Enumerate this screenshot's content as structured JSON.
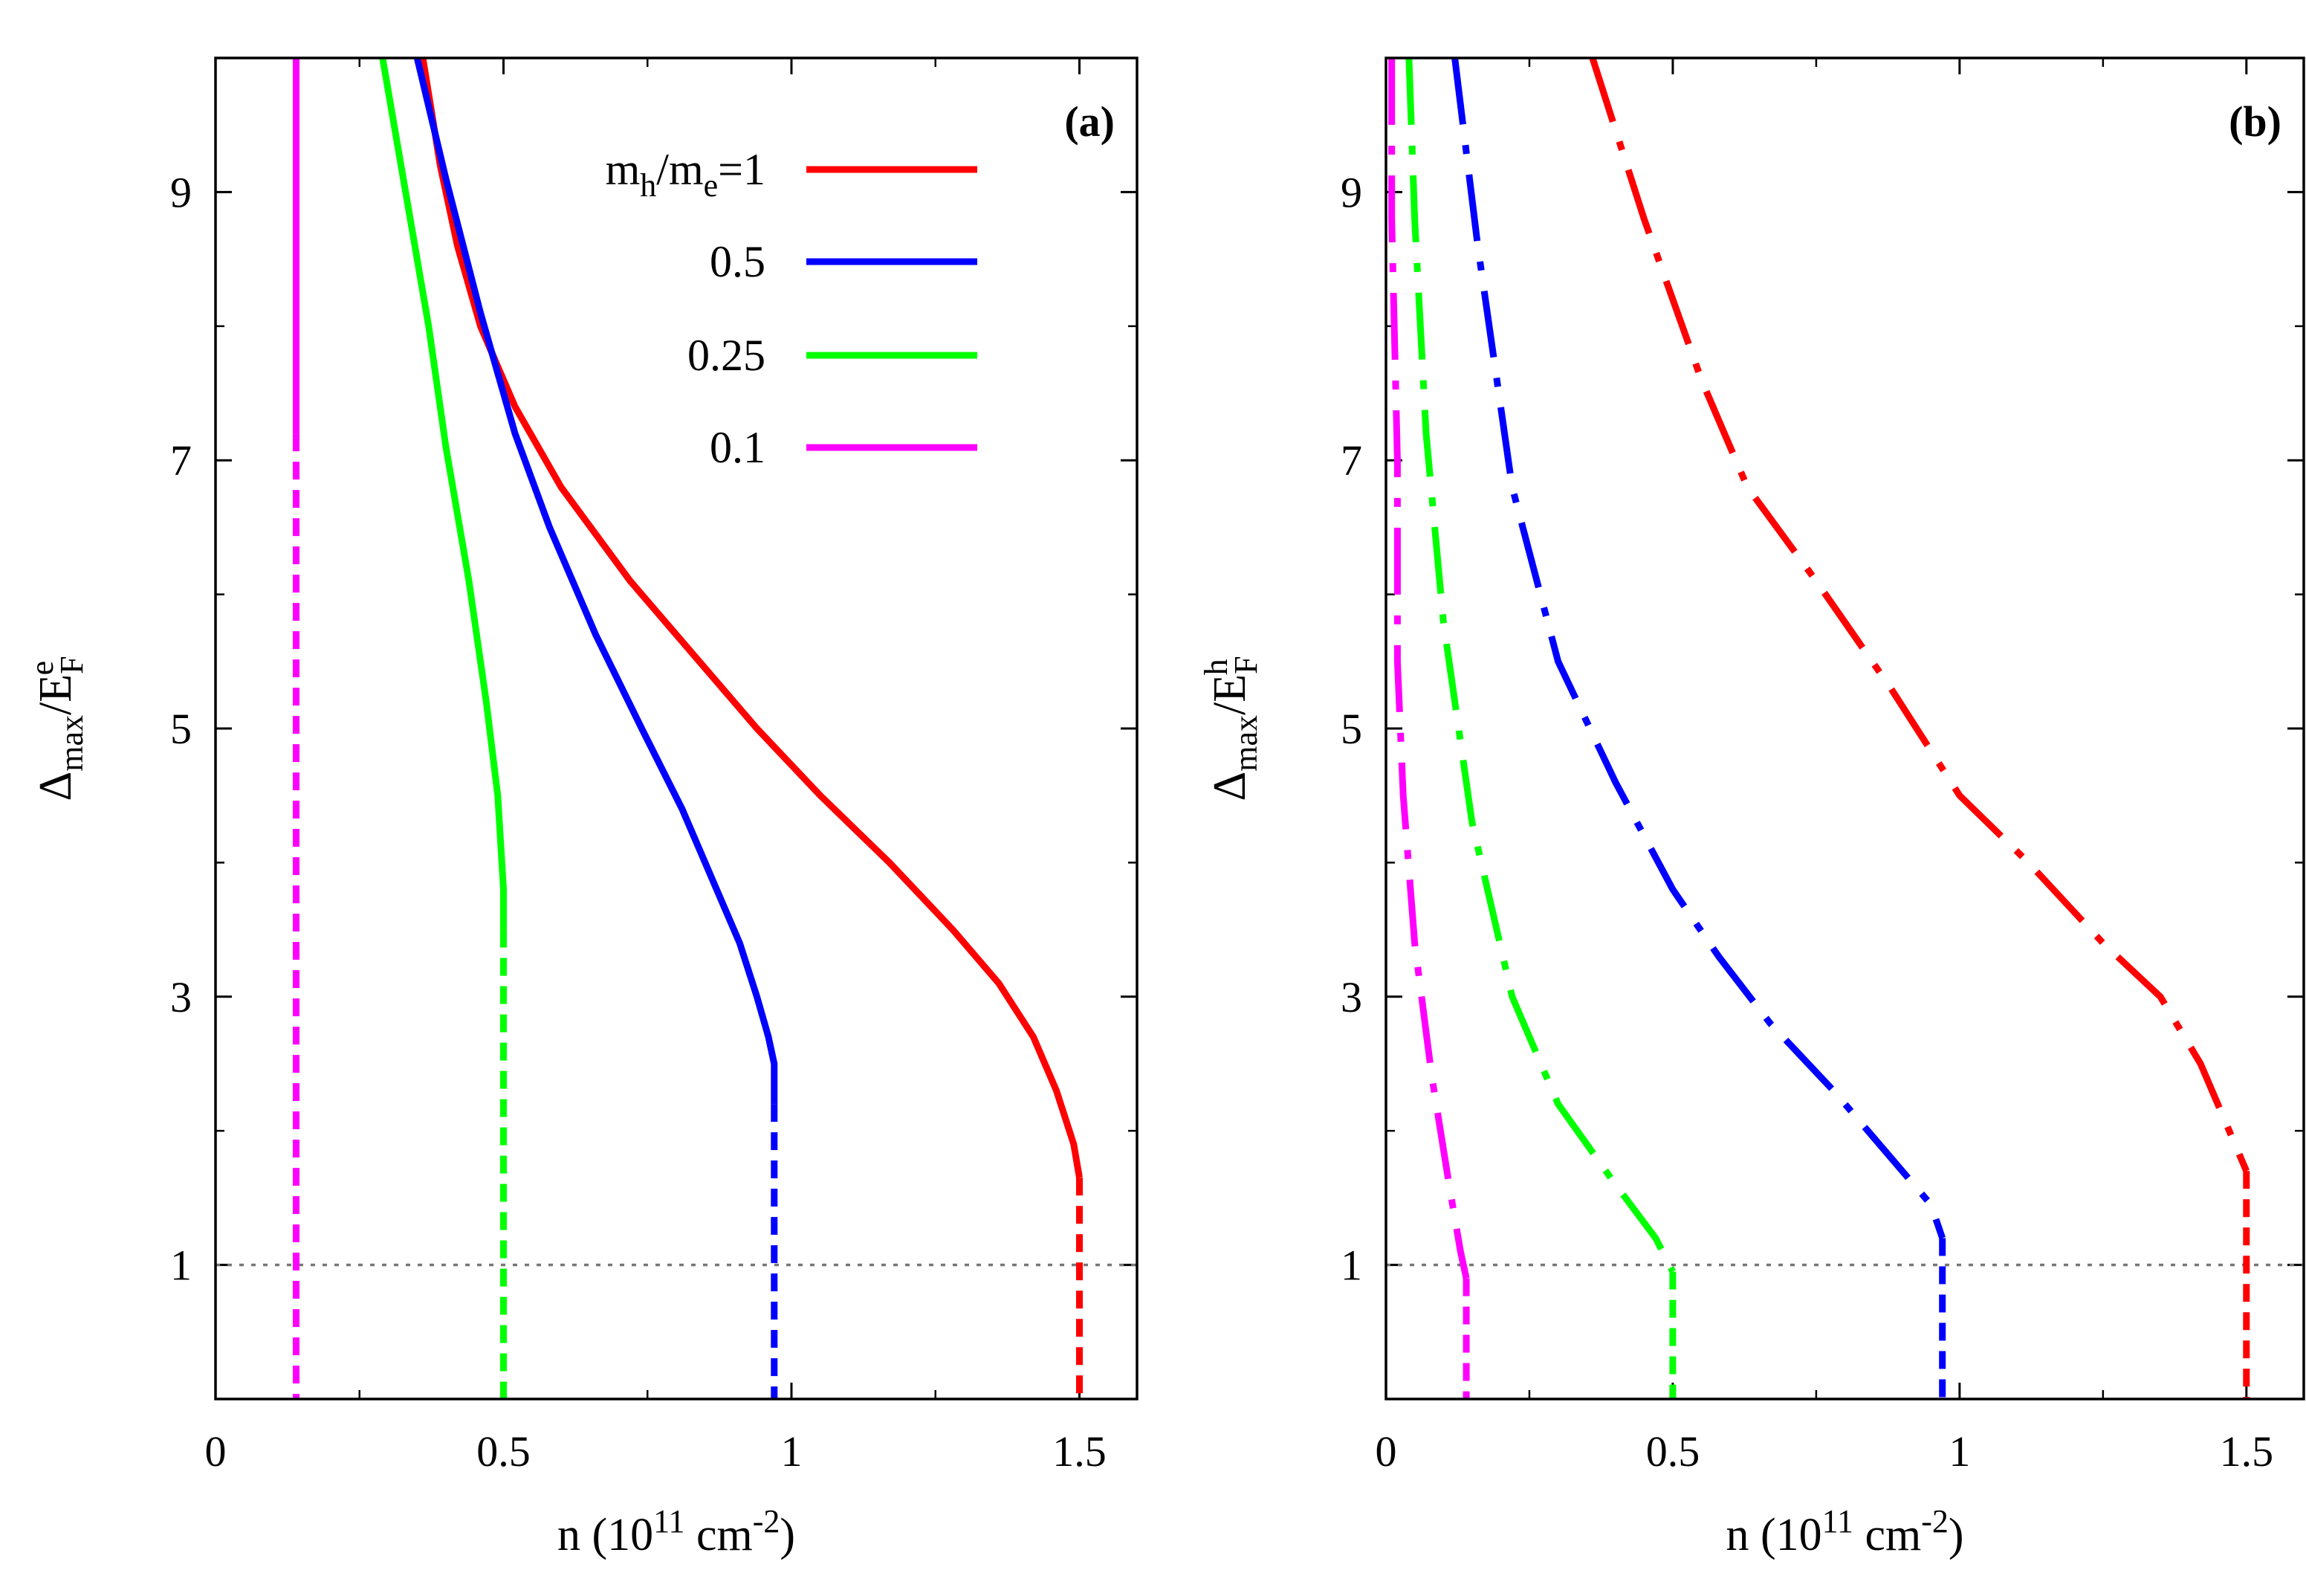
{
  "chart_data": [
    {
      "type": "line",
      "panel": "a",
      "panel_label": "(a)",
      "xlabel": {
        "main": "n (10",
        "sup1": "11",
        "mid": " cm",
        "sup2": "-2",
        "end": ")"
      },
      "ylabel": {
        "main": "Δ",
        "sub1": "max",
        "mid": "/E",
        "sub2": "F",
        "sup": "e"
      },
      "xlim": [
        0,
        1.6
      ],
      "ylim": [
        0,
        10
      ],
      "xticks": [
        0,
        0.5,
        1,
        1.5
      ],
      "xtick_labels": [
        "0",
        "0.5",
        "1",
        "1.5"
      ],
      "yticks": [
        1,
        3,
        5,
        7,
        9
      ],
      "ytick_labels": [
        "1",
        "3",
        "5",
        "7",
        "9"
      ],
      "reference_line": {
        "y": 1,
        "style": "dotted",
        "color": "#777777"
      },
      "legend": {
        "title_parts": {
          "m": "m",
          "sub_h": "h",
          "slash": "/m",
          "sub_e": "e",
          "eq": "=1"
        },
        "entries": [
          "0.5",
          "0.25",
          "0.1"
        ]
      },
      "series": [
        {
          "name": "m_h/m_e=1",
          "color": "#ff0000",
          "solid": [
            [
              0.36,
              10
            ],
            [
              0.39,
              9.2
            ],
            [
              0.42,
              8.6
            ],
            [
              0.46,
              8.0
            ],
            [
              0.52,
              7.4
            ],
            [
              0.6,
              6.8
            ],
            [
              0.72,
              6.1
            ],
            [
              0.82,
              5.6
            ],
            [
              0.94,
              5.0
            ],
            [
              1.05,
              4.5
            ],
            [
              1.17,
              4.0
            ],
            [
              1.28,
              3.5
            ],
            [
              1.36,
              3.1
            ],
            [
              1.42,
              2.7
            ],
            [
              1.46,
              2.3
            ],
            [
              1.49,
              1.9
            ],
            [
              1.5,
              1.65
            ]
          ],
          "dashed": [
            [
              1.5,
              1.65
            ],
            [
              1.5,
              1.3
            ],
            [
              1.5,
              0.6
            ],
            [
              1.5,
              0
            ]
          ]
        },
        {
          "name": "0.5",
          "color": "#0000ff",
          "solid": [
            [
              0.35,
              10
            ],
            [
              0.4,
              9.1
            ],
            [
              0.46,
              8.1
            ],
            [
              0.52,
              7.2
            ],
            [
              0.58,
              6.5
            ],
            [
              0.66,
              5.7
            ],
            [
              0.74,
              5.0
            ],
            [
              0.81,
              4.4
            ],
            [
              0.87,
              3.8
            ],
            [
              0.91,
              3.4
            ],
            [
              0.94,
              3.0
            ],
            [
              0.96,
              2.7
            ],
            [
              0.97,
              2.5
            ],
            [
              0.97,
              2.2
            ]
          ],
          "dashed": [
            [
              0.97,
              2.2
            ],
            [
              0.97,
              1.4
            ],
            [
              0.97,
              0.6
            ],
            [
              0.97,
              0
            ]
          ]
        },
        {
          "name": "0.25",
          "color": "#00ff00",
          "solid": [
            [
              0.29,
              10
            ],
            [
              0.33,
              9.0
            ],
            [
              0.37,
              8.0
            ],
            [
              0.4,
              7.1
            ],
            [
              0.44,
              6.1
            ],
            [
              0.47,
              5.2
            ],
            [
              0.49,
              4.5
            ],
            [
              0.5,
              3.8
            ],
            [
              0.5,
              3.5
            ]
          ],
          "dashed": [
            [
              0.5,
              3.5
            ],
            [
              0.5,
              2.5
            ],
            [
              0.5,
              1.5
            ],
            [
              0.5,
              0
            ]
          ]
        },
        {
          "name": "0.1",
          "color": "#ff00ff",
          "solid": [
            [
              0.14,
              10
            ],
            [
              0.14,
              9.0
            ],
            [
              0.14,
              8.0
            ],
            [
              0.14,
              7.2
            ]
          ],
          "dashed": [
            [
              0.14,
              7.2
            ],
            [
              0.14,
              5
            ],
            [
              0.14,
              3
            ],
            [
              0.14,
              0
            ]
          ]
        }
      ]
    },
    {
      "type": "line",
      "panel": "b",
      "panel_label": "(b)",
      "xlabel": {
        "main": "n (10",
        "sup1": "11",
        "mid": " cm",
        "sup2": "-2",
        "end": ")"
      },
      "ylabel": {
        "main": "Δ",
        "sub1": "max",
        "mid": "/E",
        "sub2": "F",
        "sup": "h"
      },
      "xlim": [
        0,
        1.6
      ],
      "ylim": [
        0,
        10
      ],
      "xticks": [
        0,
        0.5,
        1,
        1.5
      ],
      "xtick_labels": [
        "0",
        "0.5",
        "1",
        "1.5"
      ],
      "yticks": [
        1,
        3,
        5,
        7,
        9
      ],
      "ytick_labels": [
        "1",
        "3",
        "5",
        "7",
        "9"
      ],
      "reference_line": {
        "y": 1,
        "style": "dotted",
        "color": "#777777"
      },
      "series": [
        {
          "name": "m_h/m_e=1",
          "color": "#ff0000",
          "dashdot": [
            [
              0.36,
              10
            ],
            [
              0.45,
              8.8
            ],
            [
              0.55,
              7.6
            ],
            [
              0.63,
              6.8
            ],
            [
              0.75,
              6.1
            ],
            [
              0.88,
              5.3
            ],
            [
              1.0,
              4.5
            ],
            [
              1.12,
              4.0
            ],
            [
              1.25,
              3.4
            ],
            [
              1.35,
              3.0
            ],
            [
              1.42,
              2.5
            ],
            [
              1.47,
              2.0
            ],
            [
              1.5,
              1.7
            ]
          ],
          "dashed": [
            [
              1.5,
              1.7
            ],
            [
              1.5,
              1.0
            ],
            [
              1.5,
              0
            ]
          ]
        },
        {
          "name": "0.5",
          "color": "#0000ff",
          "dashdot": [
            [
              0.12,
              10
            ],
            [
              0.16,
              8.6
            ],
            [
              0.22,
              6.8
            ],
            [
              0.3,
              5.5
            ],
            [
              0.4,
              4.6
            ],
            [
              0.5,
              3.8
            ],
            [
              0.58,
              3.3
            ],
            [
              0.67,
              2.8
            ],
            [
              0.78,
              2.3
            ],
            [
              0.88,
              1.8
            ],
            [
              0.95,
              1.45
            ],
            [
              0.97,
              1.2
            ]
          ],
          "dashed": [
            [
              0.97,
              1.2
            ],
            [
              0.97,
              0.8
            ],
            [
              0.97,
              0
            ]
          ]
        },
        {
          "name": "0.25",
          "color": "#00ff00",
          "dashdot": [
            [
              0.04,
              10
            ],
            [
              0.05,
              8.8
            ],
            [
              0.07,
              7.2
            ],
            [
              0.1,
              5.8
            ],
            [
              0.15,
              4.3
            ],
            [
              0.22,
              3.0
            ],
            [
              0.3,
              2.2
            ],
            [
              0.4,
              1.6
            ],
            [
              0.47,
              1.2
            ],
            [
              0.5,
              0.95
            ]
          ],
          "dashed": [
            [
              0.5,
              0.95
            ],
            [
              0.5,
              0.5
            ],
            [
              0.5,
              0
            ]
          ]
        },
        {
          "name": "0.1",
          "color": "#ff00ff",
          "dashdot": [
            [
              0.01,
              10
            ],
            [
              0.01,
              8.8
            ],
            [
              0.02,
              7.0
            ],
            [
              0.02,
              5.5
            ],
            [
              0.03,
              4.5
            ],
            [
              0.05,
              3.4
            ],
            [
              0.08,
              2.4
            ],
            [
              0.11,
              1.6
            ],
            [
              0.13,
              1.1
            ],
            [
              0.14,
              0.9
            ]
          ],
          "dashed": [
            [
              0.14,
              0.9
            ],
            [
              0.14,
              0.5
            ],
            [
              0.14,
              0
            ]
          ]
        }
      ]
    }
  ]
}
